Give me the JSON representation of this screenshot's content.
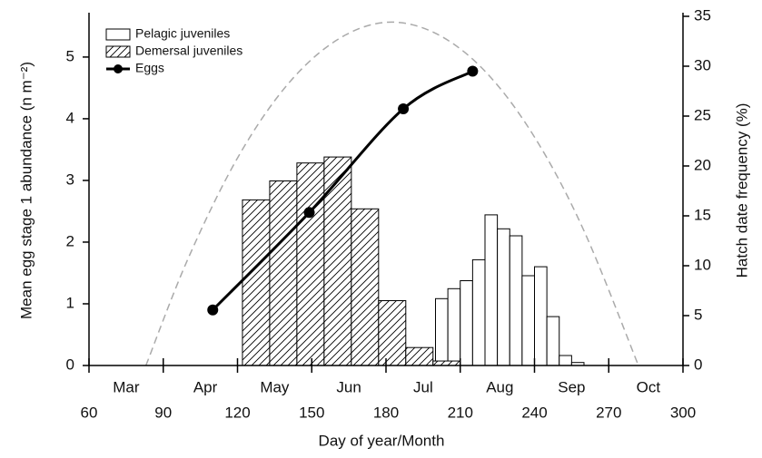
{
  "chart_data": {
    "type": "histogram",
    "xlabel": "Day of year/Month",
    "ylabel": "Mean egg stage 1 abundance (n m⁻²)",
    "y2label": "Hatch date frequency (%)",
    "xlim": [
      60,
      300
    ],
    "xticks": [
      60,
      90,
      120,
      150,
      180,
      210,
      240,
      270,
      300
    ],
    "month_ticks": [
      {
        "value": 75,
        "label": "Mar"
      },
      {
        "value": 107,
        "label": "Apr"
      },
      {
        "value": 135,
        "label": "May"
      },
      {
        "value": 165,
        "label": "Jun"
      },
      {
        "value": 195,
        "label": "Jul"
      },
      {
        "value": 226,
        "label": "Aug"
      },
      {
        "value": 255,
        "label": "Sep"
      },
      {
        "value": 286,
        "label": "Oct"
      }
    ],
    "ylim": [
      0,
      5.66
    ],
    "yticks": [
      0,
      1,
      2,
      3,
      4,
      5
    ],
    "y2lim": [
      0,
      35
    ],
    "y2ticks": [
      0,
      5,
      10,
      15,
      20,
      25,
      30,
      35
    ],
    "histograms": [
      {
        "name": "Pelagic juveniles",
        "axis": "y2",
        "pattern": "none",
        "bins": [
          200,
          205,
          210,
          215,
          220,
          225,
          230,
          235,
          240,
          245,
          250,
          255,
          260
        ],
        "values": [
          6.7,
          7.7,
          8.5,
          10.6,
          15.1,
          13.7,
          13.0,
          9.0,
          9.9,
          4.9,
          1.0,
          0.3
        ]
      },
      {
        "name": "Demersal juveniles",
        "axis": "y2",
        "pattern": "hatch",
        "bins": [
          122,
          133,
          144,
          155,
          166,
          177,
          188,
          199,
          210
        ],
        "values": [
          16.6,
          18.5,
          20.3,
          20.9,
          15.7,
          6.5,
          1.8,
          0.45
        ]
      }
    ],
    "line": {
      "name": "Eggs",
      "color": "#000000",
      "x": [
        110,
        149,
        187,
        215
      ],
      "values": [
        0.9,
        2.48,
        4.16,
        4.77
      ]
    },
    "curve": {
      "color": "#aaaaaa",
      "axis": "y2",
      "x": [
        83,
        100,
        120,
        140,
        160,
        180,
        200,
        220,
        240,
        260,
        282
      ],
      "values": [
        0,
        10.7,
        20.8,
        28.1,
        32.6,
        34.4,
        33.3,
        29.5,
        22.9,
        13.5,
        0
      ]
    }
  }
}
